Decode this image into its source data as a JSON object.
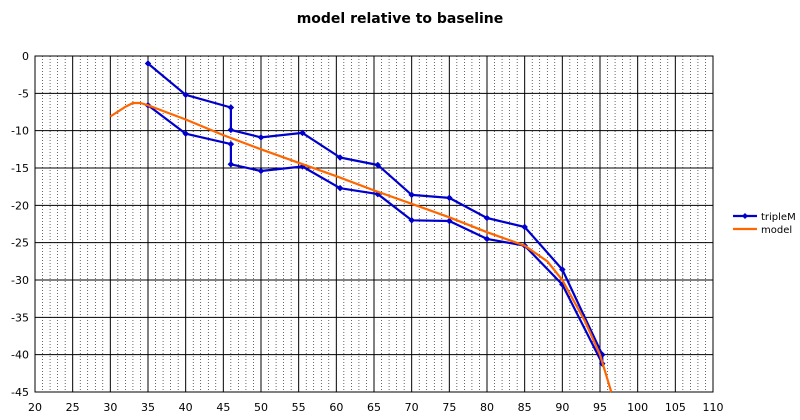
{
  "chart_data": {
    "type": "line",
    "title": "model relative to baseline",
    "xlabel": "",
    "ylabel": "",
    "xlim": [
      20,
      110
    ],
    "ylim": [
      -45,
      0
    ],
    "xticks": [
      20,
      25,
      30,
      35,
      40,
      45,
      50,
      55,
      60,
      65,
      70,
      75,
      80,
      85,
      90,
      95,
      100,
      105,
      110
    ],
    "yticks": [
      0,
      -5,
      -10,
      -15,
      -20,
      -25,
      -30,
      -35,
      -40,
      -45
    ],
    "grid": true,
    "legend_position": "right",
    "series": [
      {
        "name": "tripleM",
        "color": "#0000cc",
        "marker": "diamond",
        "points": [
          [
            35,
            -1.0
          ],
          [
            40,
            -5.2
          ],
          [
            46,
            -6.9
          ],
          [
            46,
            -9.9
          ],
          [
            50,
            -10.9
          ],
          [
            55.5,
            -10.3
          ],
          [
            60.5,
            -13.6
          ],
          [
            65.5,
            -14.6
          ],
          [
            70,
            -18.6
          ],
          [
            75,
            -19.0
          ],
          [
            80,
            -21.7
          ],
          [
            85,
            -22.9
          ],
          [
            90,
            -28.6
          ],
          [
            95.3,
            -40.0
          ],
          [
            95.3,
            -41.2
          ],
          [
            90,
            -30.6
          ],
          [
            85,
            -25.4
          ],
          [
            80,
            -24.5
          ],
          [
            75,
            -22.1
          ],
          [
            70,
            -22.0
          ],
          [
            65.5,
            -18.5
          ],
          [
            60.5,
            -17.7
          ],
          [
            55.5,
            -14.8
          ],
          [
            50,
            -15.4
          ],
          [
            46,
            -14.5
          ],
          [
            46,
            -11.8
          ],
          [
            40,
            -10.4
          ],
          [
            35,
            -6.6
          ]
        ]
      },
      {
        "name": "model",
        "color": "#ff6600",
        "marker": "none",
        "points": [
          [
            30,
            -8.1
          ],
          [
            32,
            -6.8
          ],
          [
            33,
            -6.3
          ],
          [
            34,
            -6.3
          ],
          [
            35,
            -6.6
          ],
          [
            40,
            -8.5
          ],
          [
            45,
            -10.6
          ],
          [
            50,
            -12.5
          ],
          [
            55,
            -14.3
          ],
          [
            60,
            -16.1
          ],
          [
            65,
            -18.0
          ],
          [
            70,
            -19.8
          ],
          [
            75,
            -21.6
          ],
          [
            80,
            -23.6
          ],
          [
            85,
            -25.4
          ],
          [
            88,
            -27.5
          ],
          [
            90,
            -30.0
          ],
          [
            93,
            -35.5
          ],
          [
            95,
            -40.0
          ],
          [
            96.5,
            -45.0
          ]
        ]
      }
    ]
  }
}
